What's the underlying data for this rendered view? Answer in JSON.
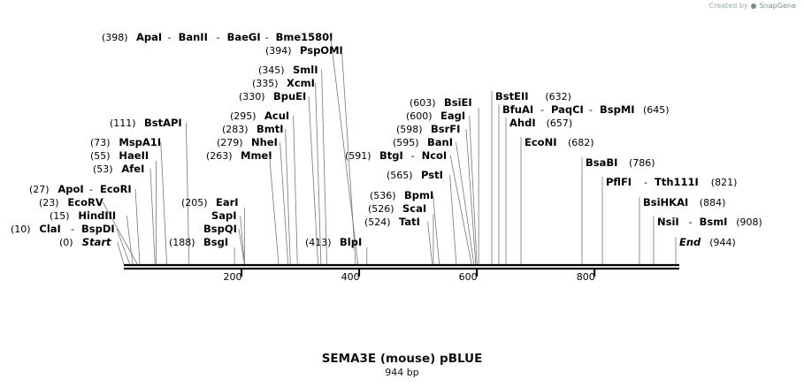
{
  "credit": {
    "prefix": "Created by",
    "brand": "SnapGene"
  },
  "construct": {
    "name": "SEMA3E (mouse) pBLUE",
    "length_label": "944 bp",
    "length": 944
  },
  "axis": {
    "ticks": [
      200,
      400,
      600,
      800
    ]
  },
  "labels": [
    {
      "pos": "(398)",
      "enzymes": [
        "ApaI",
        "BanII",
        "BaeGI",
        "Bme1580I"
      ],
      "site": 398,
      "side": "left"
    },
    {
      "pos": "(394)",
      "enzymes": [
        "PspOMI"
      ],
      "site": 394,
      "side": "left"
    },
    {
      "pos": "(345)",
      "enzymes": [
        "SmlI"
      ],
      "site": 345,
      "side": "left"
    },
    {
      "pos": "(335)",
      "enzymes": [
        "XcmI"
      ],
      "site": 335,
      "side": "left"
    },
    {
      "pos": "(330)",
      "enzymes": [
        "BpuEI"
      ],
      "site": 330,
      "side": "left"
    },
    {
      "pos": "(111)",
      "enzymes": [
        "BstAPI"
      ],
      "site": 111,
      "side": "left"
    },
    {
      "pos": "(295)",
      "enzymes": [
        "AcuI"
      ],
      "site": 295,
      "side": "left"
    },
    {
      "pos": "(283)",
      "enzymes": [
        "BmtI"
      ],
      "site": 283,
      "side": "left"
    },
    {
      "pos": "(73)",
      "enzymes": [
        "MspA1I"
      ],
      "site": 73,
      "side": "left"
    },
    {
      "pos": "(279)",
      "enzymes": [
        "NheI"
      ],
      "site": 279,
      "side": "left"
    },
    {
      "pos": "(55)",
      "enzymes": [
        "HaeII"
      ],
      "site": 55,
      "side": "left"
    },
    {
      "pos": "(263)",
      "enzymes": [
        "MmeI"
      ],
      "site": 263,
      "side": "left"
    },
    {
      "pos": "(53)",
      "enzymes": [
        "AfeI"
      ],
      "site": 53,
      "side": "left"
    },
    {
      "pos": "(27)",
      "enzymes": [
        "ApoI",
        "EcoRI"
      ],
      "site": 27,
      "side": "left"
    },
    {
      "pos": "(205)",
      "enzymes": [
        "EarI"
      ],
      "site": 205,
      "side": "left"
    },
    {
      "pos": "(23)",
      "enzymes": [
        "EcoRV"
      ],
      "site": 23,
      "side": "left"
    },
    {
      "pos": "",
      "enzymes": [
        "SapI"
      ],
      "site": 205,
      "side": "left"
    },
    {
      "pos": "(15)",
      "enzymes": [
        "HindIII"
      ],
      "site": 15,
      "side": "left"
    },
    {
      "pos": "",
      "enzymes": [
        "BspQI"
      ],
      "site": 205,
      "side": "left"
    },
    {
      "pos": "(10)",
      "enzymes": [
        "ClaI",
        "BspDI"
      ],
      "site": 10,
      "side": "left"
    },
    {
      "pos": "(0)",
      "enzymes": [
        "Start"
      ],
      "site": 0,
      "side": "left",
      "italic": true
    },
    {
      "pos": "(188)",
      "enzymes": [
        "BsgI"
      ],
      "site": 188,
      "side": "left"
    },
    {
      "pos": "(413)",
      "enzymes": [
        "BlpI"
      ],
      "site": 413,
      "side": "left"
    },
    {
      "pos": "(603)",
      "enzymes": [
        "BsiEI"
      ],
      "site": 603,
      "side": "left"
    },
    {
      "pos": "(600)",
      "enzymes": [
        "EagI"
      ],
      "site": 600,
      "side": "left"
    },
    {
      "pos": "(598)",
      "enzymes": [
        "BsrFI"
      ],
      "site": 598,
      "side": "left"
    },
    {
      "pos": "(595)",
      "enzymes": [
        "BanI"
      ],
      "site": 595,
      "side": "left"
    },
    {
      "pos": "(591)",
      "enzymes": [
        "BtgI",
        "NcoI"
      ],
      "site": 591,
      "side": "left"
    },
    {
      "pos": "(565)",
      "enzymes": [
        "PstI"
      ],
      "site": 565,
      "side": "left"
    },
    {
      "pos": "(536)",
      "enzymes": [
        "BpmI"
      ],
      "site": 536,
      "side": "left"
    },
    {
      "pos": "(526)",
      "enzymes": [
        "ScaI"
      ],
      "site": 526,
      "side": "left"
    },
    {
      "pos": "(524)",
      "enzymes": [
        "TatI"
      ],
      "site": 524,
      "side": "left"
    },
    {
      "pos": "(632)",
      "enzymes": [
        "BstEII"
      ],
      "site": 632,
      "side": "right"
    },
    {
      "pos": "(645)",
      "enzymes": [
        "BfuAI",
        "PaqCI",
        "BspMI"
      ],
      "site": 645,
      "side": "right"
    },
    {
      "pos": "(657)",
      "enzymes": [
        "AhdI"
      ],
      "site": 657,
      "side": "right"
    },
    {
      "pos": "(682)",
      "enzymes": [
        "EcoNI"
      ],
      "site": 682,
      "side": "right"
    },
    {
      "pos": "(786)",
      "enzymes": [
        "BsaBI"
      ],
      "site": 786,
      "side": "right"
    },
    {
      "pos": "(821)",
      "enzymes": [
        "PflFI",
        "Tth111I"
      ],
      "site": 821,
      "side": "right"
    },
    {
      "pos": "(884)",
      "enzymes": [
        "BsiHKAI"
      ],
      "site": 884,
      "side": "right"
    },
    {
      "pos": "(908)",
      "enzymes": [
        "NsiI",
        "BsmI"
      ],
      "site": 908,
      "side": "right"
    },
    {
      "pos": "(944)",
      "enzymes": [
        "End"
      ],
      "site": 944,
      "side": "right",
      "italic": true
    }
  ]
}
